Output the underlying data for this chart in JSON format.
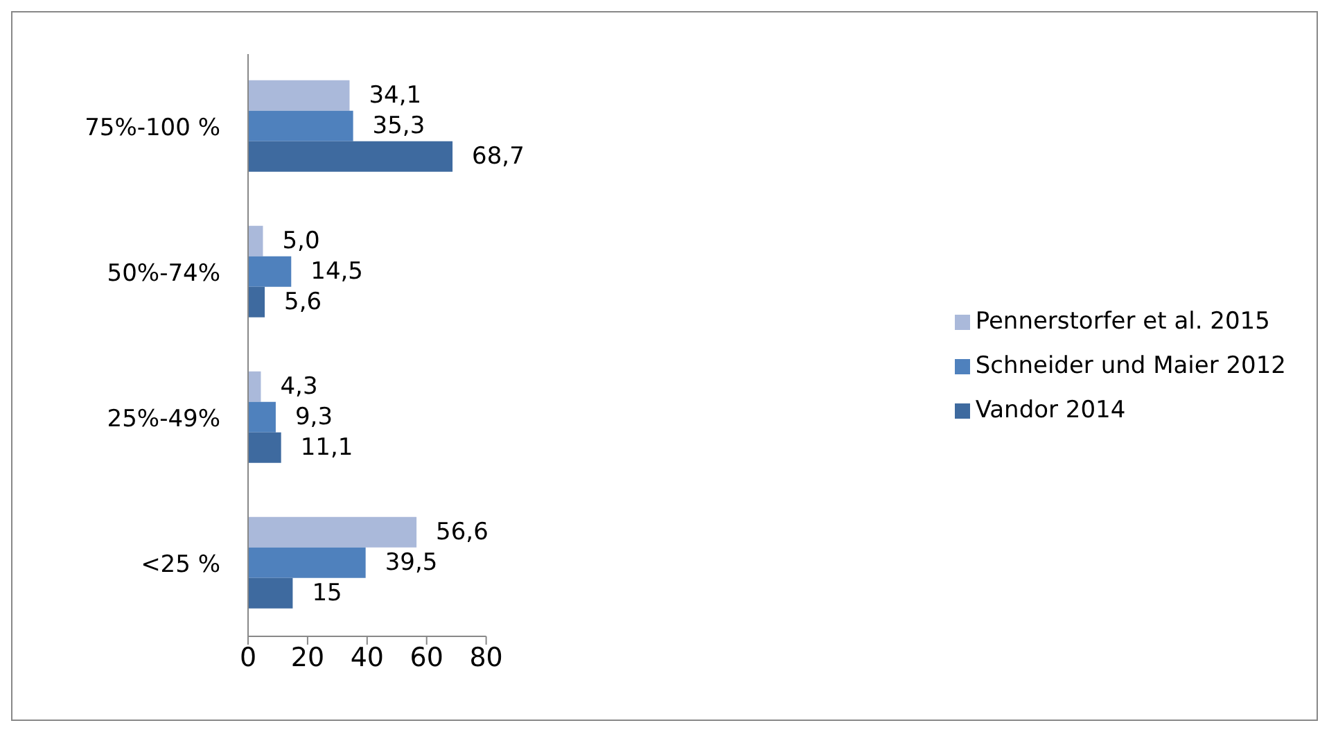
{
  "chart_data": {
    "type": "bar",
    "orientation": "horizontal",
    "categories": [
      "75%-100 %",
      "50%-74%",
      "25%-49%",
      "<25 %"
    ],
    "series": [
      {
        "name": "Pennerstorfer et al. 2015",
        "color": "#aab9da",
        "values": [
          34.1,
          5.0,
          4.3,
          56.6
        ],
        "value_labels": [
          "34,1",
          "5,0",
          "4,3",
          "56,6"
        ]
      },
      {
        "name": "Schneider und Maier 2012",
        "color": "#4f81bd",
        "values": [
          35.3,
          14.5,
          9.3,
          39.5
        ],
        "value_labels": [
          "35,3",
          "14,5",
          "9,3",
          "39,5"
        ]
      },
      {
        "name": "Vandor 2014",
        "color": "#3e6a9f",
        "values": [
          68.7,
          5.6,
          11.1,
          15
        ],
        "value_labels": [
          "68,7",
          "5,6",
          "11,1",
          "15"
        ]
      }
    ],
    "xlim": [
      0,
      80
    ],
    "xticks": [
      0,
      20,
      40,
      60,
      80
    ],
    "grid": false,
    "legend": "right"
  }
}
